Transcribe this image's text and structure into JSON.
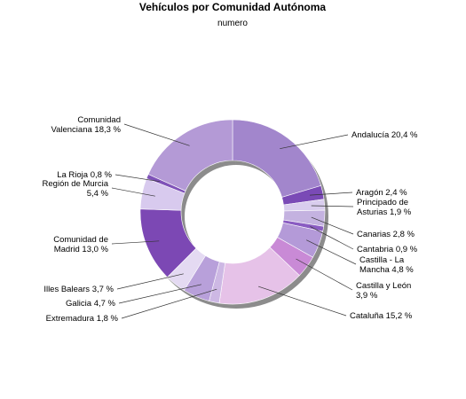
{
  "chart_data": {
    "type": "pie",
    "style": "donut",
    "title": "Vehículos por Comunidad Autónoma",
    "subtitle": "numero",
    "unit": "%",
    "slices": [
      {
        "label": "Andalucía 20,4 %",
        "value": 20.4,
        "color": "#a286cc"
      },
      {
        "label": "Aragón 2,4 %",
        "value": 2.4,
        "color": "#7a4ab6"
      },
      {
        "label": "Principado de Asturias 1,9 %",
        "lines": [
          "Principado de",
          "Asturias 1,9 %"
        ],
        "value": 1.9,
        "color": "#d9cdee"
      },
      {
        "label": "Canarias 2,8 %",
        "value": 2.8,
        "color": "#c4b2e0"
      },
      {
        "label": "Cantabria 0,9 %",
        "value": 0.9,
        "color": "#8a5cc2"
      },
      {
        "label": "Castilla - La Mancha 4,8 %",
        "lines": [
          "Castilla - La",
          "Mancha 4,8 %"
        ],
        "value": 4.8,
        "color": "#b49ad8"
      },
      {
        "label": "Castilla y León 3,9 %",
        "lines": [
          "Castilla y León",
          "3,9 %"
        ],
        "value": 3.9,
        "color": "#c98ad6"
      },
      {
        "label": "Cataluña 15,2 %",
        "value": 15.2,
        "color": "#e6c2e8"
      },
      {
        "label": "Extremadura 1,8 %",
        "value": 1.8,
        "color": "#cdb8e4"
      },
      {
        "label": "Galicia 4,7 %",
        "value": 4.7,
        "color": "#b8a0da"
      },
      {
        "label": "Illes Balears 3,7 %",
        "value": 3.7,
        "color": "#e4daf2"
      },
      {
        "label": "Comunidad de Madrid 13,0 %",
        "lines": [
          "Comunidad de",
          "Madrid 13,0 %"
        ],
        "value": 13.0,
        "color": "#7c48b4"
      },
      {
        "label": "Región de Murcia 5,4 %",
        "lines": [
          "Región de Murcia",
          "5,4 %"
        ],
        "value": 5.4,
        "color": "#d8caee"
      },
      {
        "label": "La Rioja 0,8 %",
        "value": 0.8,
        "color": "#7f52b8"
      },
      {
        "label": "Comunidad Valenciana 18,3 %",
        "lines": [
          "Comunidad",
          "Valenciana 18,3 %"
        ],
        "value": 18.3,
        "color": "#b49ad6"
      }
    ]
  }
}
